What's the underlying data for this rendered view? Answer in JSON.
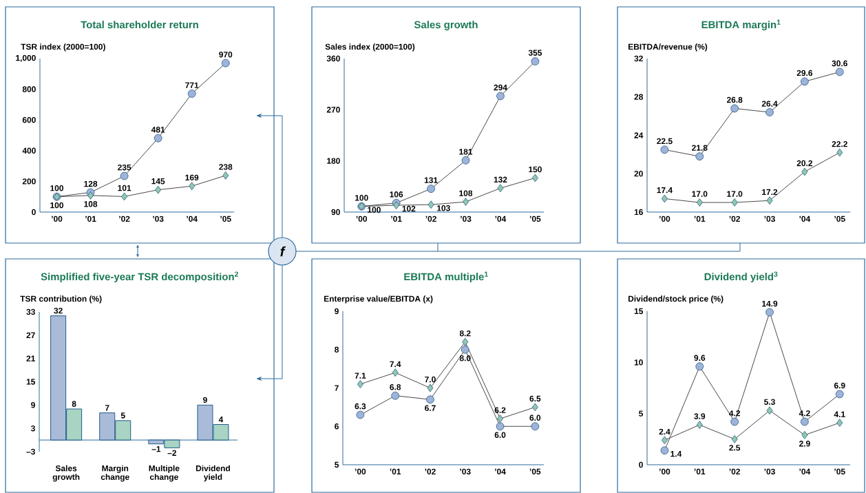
{
  "chart_data": [
    {
      "type": "line",
      "title": "Total shareholder return",
      "ylabel": "TSR index (2000=100)",
      "categories": [
        "’00",
        "’01",
        "’02",
        "’03",
        "’04",
        "’05"
      ],
      "ylim": [
        0,
        1000
      ],
      "yticks": [
        0,
        200,
        400,
        600,
        800,
        {
          "value": 1000,
          "label": "1,000"
        }
      ],
      "series": [
        {
          "color": "#9db3d9",
          "marker": "circle",
          "values": [
            100,
            128,
            235,
            481,
            771,
            970
          ],
          "value_labels": [
            "100",
            "128",
            "235",
            "481",
            "771",
            "970"
          ]
        },
        {
          "color": "#8fc7b3",
          "marker": "diamond",
          "values": [
            100,
            108,
            101,
            145,
            169,
            238
          ],
          "value_labels": [
            "100",
            "108",
            "101",
            "145",
            "169",
            "238"
          ]
        }
      ]
    },
    {
      "type": "line",
      "title": "Sales growth",
      "ylabel": "Sales index (2000=100)",
      "categories": [
        "’00",
        "’01",
        "’02",
        "’03",
        "’04",
        "’05"
      ],
      "ylim": [
        90,
        360
      ],
      "yticks": [
        90,
        180,
        270,
        360
      ],
      "series": [
        {
          "color": "#9db3d9",
          "marker": "circle",
          "values": [
            100,
            106,
            131,
            181,
            294,
            355
          ],
          "value_labels": [
            "100",
            "106",
            "131",
            "181",
            "294",
            "355"
          ]
        },
        {
          "color": "#8fc7b3",
          "marker": "diamond",
          "values": [
            100,
            102,
            103,
            108,
            132,
            150
          ],
          "value_labels": [
            "100",
            "102",
            "103",
            "108",
            "132",
            "150"
          ]
        }
      ]
    },
    {
      "type": "line",
      "title": "EBITDA margin$^{1}$",
      "ylabel": "EBITDA/revenue (%)",
      "categories": [
        "’00",
        "’01",
        "’02",
        "’03",
        "’04",
        "’05"
      ],
      "ylim": [
        16,
        32
      ],
      "yticks": [
        16,
        20,
        24,
        28,
        32
      ],
      "series": [
        {
          "color": "#9db3d9",
          "marker": "circle",
          "values": [
            22.5,
            21.8,
            26.8,
            26.4,
            29.6,
            30.6
          ],
          "value_labels": [
            "22.5",
            "21.8",
            "26.8",
            "26.4",
            "29.6",
            "30.6"
          ]
        },
        {
          "color": "#8fc7b3",
          "marker": "diamond",
          "values": [
            17.4,
            17.0,
            17.0,
            17.2,
            20.2,
            22.2
          ],
          "value_labels": [
            "17.4",
            "17.0",
            "17.0",
            "17.2",
            "20.2",
            "22.2"
          ]
        }
      ]
    },
    {
      "type": "bar",
      "title": "Simplified five-year TSR decomposition$^{2}$",
      "ylabel": "TSR contribution (%)",
      "categories": [
        "Sales growth",
        "Margin change",
        "Multiple change",
        "Dividend yield"
      ],
      "ylim": [
        -3,
        33
      ],
      "yticks": [
        {
          "value": -3,
          "label": "–3"
        },
        3,
        9,
        15,
        21,
        27,
        33
      ],
      "ref_lines": [
        {
          "axis": "y",
          "value": 0
        }
      ],
      "series": [
        {
          "color": "#aabbd9",
          "values": [
            32,
            7,
            -1,
            9
          ],
          "value_labels": [
            "32",
            "7",
            "–1",
            "9"
          ]
        },
        {
          "color": "#a9d3c3",
          "values": [
            8,
            5,
            -2,
            4
          ],
          "value_labels": [
            "8",
            "5",
            "–2",
            "4"
          ]
        }
      ]
    },
    {
      "type": "line",
      "title": "EBITDA multiple$^{1}$",
      "ylabel": "Enterprise value/EBITDA (x)",
      "categories": [
        "’00",
        "’01",
        "’02",
        "’03",
        "’04",
        "’05"
      ],
      "ylim": [
        5,
        9
      ],
      "yticks": [
        5,
        6,
        7,
        8,
        9
      ],
      "series": [
        {
          "color": "#9db3d9",
          "marker": "circle",
          "values": [
            6.3,
            6.8,
            6.7,
            8.0,
            6.0,
            6.0
          ],
          "value_labels": [
            "6.3",
            "6.8",
            "6.7",
            "8.0",
            "6.0",
            "6.0"
          ]
        },
        {
          "color": "#8fc7b3",
          "marker": "diamond",
          "values": [
            7.1,
            7.4,
            7.0,
            8.2,
            6.2,
            6.5
          ],
          "value_labels": [
            "7.1",
            "7.4",
            "7.0",
            "8.2",
            "6.2",
            "6.5"
          ]
        }
      ]
    },
    {
      "type": "line",
      "title": "Dividend yield$^{3}$",
      "ylabel": "Dividend/stock price (%)",
      "categories": [
        "’00",
        "’01",
        "’02",
        "’03",
        "’04",
        "’05"
      ],
      "ylim": [
        0,
        15
      ],
      "yticks": [
        0,
        5,
        10,
        15
      ],
      "series": [
        {
          "color": "#9db3d9",
          "marker": "circle",
          "values": [
            1.4,
            9.6,
            4.2,
            14.9,
            4.2,
            6.9
          ],
          "value_labels": [
            "1.4",
            "9.6",
            "4.2",
            "14.9",
            "4.2",
            "6.9"
          ]
        },
        {
          "color": "#8fc7b3",
          "marker": "diamond",
          "values": [
            2.4,
            3.9,
            2.5,
            5.3,
            2.9,
            4.1
          ],
          "value_labels": [
            "2.4",
            "3.9",
            "2.5",
            "5.3",
            "2.9",
            "4.1"
          ]
        }
      ]
    },
    {
      "type": "other",
      "annotations": [
        "f"
      ]
    }
  ]
}
